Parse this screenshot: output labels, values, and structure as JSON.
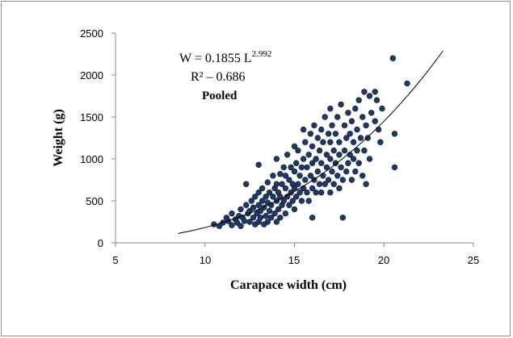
{
  "chart_data": {
    "type": "scatter",
    "xlabel": "Carapace width (cm)",
    "ylabel": "Weight (g)",
    "xlim": [
      5,
      25
    ],
    "ylim": [
      0,
      2500
    ],
    "x_ticks": [
      "5",
      "10",
      "15",
      "20",
      "25"
    ],
    "y_ticks": [
      "0",
      "500",
      "1000",
      "1500",
      "2000",
      "2500"
    ],
    "grid": false,
    "annotations": {
      "equation_prefix": "W = 0.1855 L",
      "equation_exponent": "2.992",
      "r_squared": "R² – 0.686",
      "group": "Pooled"
    },
    "marker_color": "#1f3864",
    "trendline": {
      "form": "power",
      "a": 0.1855,
      "b": 2.992,
      "x_range": [
        8.5,
        23.3
      ]
    },
    "series": [
      {
        "points": [
          [
            10.5,
            220
          ],
          [
            10.8,
            200
          ],
          [
            11,
            240
          ],
          [
            11.2,
            300
          ],
          [
            11.3,
            260
          ],
          [
            11.5,
            210
          ],
          [
            11.5,
            350
          ],
          [
            11.7,
            280
          ],
          [
            11.8,
            240
          ],
          [
            11.9,
            320
          ],
          [
            12,
            200
          ],
          [
            12,
            400
          ],
          [
            12.1,
            300
          ],
          [
            12.2,
            260
          ],
          [
            12.3,
            450
          ],
          [
            12.3,
            700
          ],
          [
            12.4,
            350
          ],
          [
            12.5,
            250
          ],
          [
            12.5,
            380
          ],
          [
            12.6,
            500
          ],
          [
            12.7,
            300
          ],
          [
            12.7,
            420
          ],
          [
            12.8,
            220
          ],
          [
            12.8,
            550
          ],
          [
            12.9,
            350
          ],
          [
            13,
            250
          ],
          [
            13,
            450
          ],
          [
            13,
            600
          ],
          [
            13,
            930
          ],
          [
            13.1,
            300
          ],
          [
            13.1,
            380
          ],
          [
            13.2,
            500
          ],
          [
            13.2,
            650
          ],
          [
            13.3,
            220
          ],
          [
            13.3,
            420
          ],
          [
            13.4,
            320
          ],
          [
            13.4,
            550
          ],
          [
            13.5,
            250
          ],
          [
            13.5,
            480
          ],
          [
            13.5,
            720
          ],
          [
            13.6,
            380
          ],
          [
            13.6,
            600
          ],
          [
            13.7,
            300
          ],
          [
            13.7,
            450
          ],
          [
            13.8,
            550
          ],
          [
            13.8,
            800
          ],
          [
            13.9,
            350
          ],
          [
            13.9,
            650
          ],
          [
            14,
            250
          ],
          [
            14,
            500
          ],
          [
            14,
            700
          ],
          [
            14,
            1000
          ],
          [
            14.1,
            400
          ],
          [
            14.1,
            600
          ],
          [
            14.2,
            300
          ],
          [
            14.2,
            550
          ],
          [
            14.2,
            820
          ],
          [
            14.3,
            450
          ],
          [
            14.3,
            700
          ],
          [
            14.4,
            500
          ],
          [
            14.4,
            900
          ],
          [
            14.5,
            350
          ],
          [
            14.5,
            650
          ],
          [
            14.5,
            800
          ],
          [
            14.6,
            550
          ],
          [
            14.6,
            1050
          ],
          [
            14.7,
            450
          ],
          [
            14.7,
            750
          ],
          [
            14.8,
            600
          ],
          [
            14.8,
            900
          ],
          [
            14.9,
            500
          ],
          [
            14.9,
            700
          ],
          [
            15,
            400
          ],
          [
            15,
            650
          ],
          [
            15,
            850
          ],
          [
            15,
            1150
          ],
          [
            15.1,
            550
          ],
          [
            15.1,
            950
          ],
          [
            15.2,
            700
          ],
          [
            15.2,
            1100
          ],
          [
            15.3,
            600
          ],
          [
            15.3,
            800
          ],
          [
            15.4,
            500
          ],
          [
            15.4,
            900
          ],
          [
            15.5,
            650
          ],
          [
            15.5,
            1000
          ],
          [
            15.5,
            1350
          ],
          [
            15.6,
            750
          ],
          [
            15.6,
            1200
          ],
          [
            15.7,
            600
          ],
          [
            15.7,
            900
          ],
          [
            15.8,
            500
          ],
          [
            15.8,
            1050
          ],
          [
            15.9,
            800
          ],
          [
            15.9,
            1300
          ],
          [
            16,
            300
          ],
          [
            16,
            650
          ],
          [
            16,
            950
          ],
          [
            16,
            1150
          ],
          [
            16.1,
            750
          ],
          [
            16.1,
            1400
          ],
          [
            16.2,
            600
          ],
          [
            16.2,
            1000
          ],
          [
            16.3,
            850
          ],
          [
            16.3,
            1250
          ],
          [
            16.4,
            700
          ],
          [
            16.4,
            1100
          ],
          [
            16.5,
            600
          ],
          [
            16.5,
            950
          ],
          [
            16.5,
            1350
          ],
          [
            16.6,
            800
          ],
          [
            16.6,
            1200
          ],
          [
            16.7,
            700
          ],
          [
            16.7,
            1500
          ],
          [
            16.8,
            900
          ],
          [
            16.8,
            1050
          ],
          [
            16.9,
            750
          ],
          [
            16.9,
            1300
          ],
          [
            17,
            600
          ],
          [
            17,
            1000
          ],
          [
            17,
            1200
          ],
          [
            17,
            1600
          ],
          [
            17.1,
            850
          ],
          [
            17.1,
            1400
          ],
          [
            17.2,
            700
          ],
          [
            17.2,
            1100
          ],
          [
            17.3,
            950
          ],
          [
            17.3,
            1300
          ],
          [
            17.4,
            800
          ],
          [
            17.4,
            1500
          ],
          [
            17.5,
            650
          ],
          [
            17.5,
            1050
          ],
          [
            17.5,
            1200
          ],
          [
            17.6,
            900
          ],
          [
            17.6,
            1650
          ],
          [
            17.7,
            300
          ],
          [
            17.7,
            750
          ],
          [
            17.8,
            1100
          ],
          [
            17.8,
            1400
          ],
          [
            17.9,
            850
          ],
          [
            17.9,
            1250
          ],
          [
            18,
            950
          ],
          [
            18,
            1550
          ],
          [
            18.1,
            1050
          ],
          [
            18.1,
            1300
          ],
          [
            18.2,
            750
          ],
          [
            18.2,
            1450
          ],
          [
            18.3,
            1000
          ],
          [
            18.3,
            1200
          ],
          [
            18.4,
            850
          ],
          [
            18.4,
            1600
          ],
          [
            18.5,
            1100
          ],
          [
            18.5,
            1350
          ],
          [
            18.6,
            950
          ],
          [
            18.6,
            1700
          ],
          [
            18.7,
            1250
          ],
          [
            18.8,
            800
          ],
          [
            18.8,
            1500
          ],
          [
            18.9,
            1100
          ],
          [
            18.9,
            1800
          ],
          [
            19,
            1400
          ],
          [
            19,
            700
          ],
          [
            19.1,
            1250
          ],
          [
            19.2,
            1000
          ],
          [
            19.2,
            1750
          ],
          [
            19.3,
            1550
          ],
          [
            19.5,
            1450
          ],
          [
            19.5,
            1800
          ],
          [
            19.6,
            1700
          ],
          [
            19.7,
            1350
          ],
          [
            19.8,
            1200
          ],
          [
            19.9,
            1600
          ],
          [
            20.5,
            2200
          ],
          [
            20.6,
            900
          ],
          [
            20.6,
            1300
          ],
          [
            21.3,
            1900
          ]
        ]
      }
    ]
  }
}
